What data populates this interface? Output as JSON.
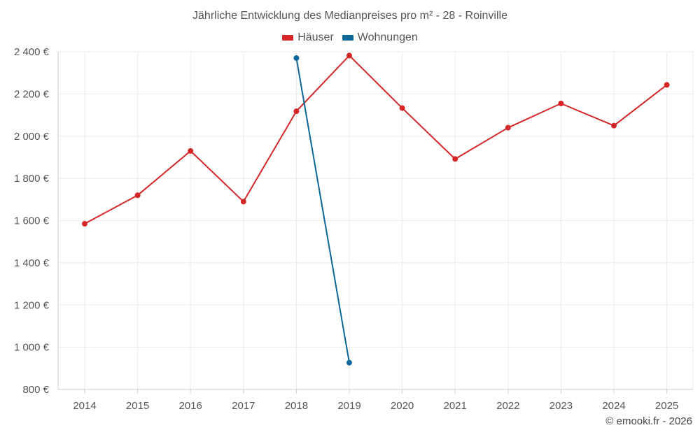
{
  "chart_data": {
    "type": "line",
    "title": "Jährliche Entwicklung des Medianpreises pro m² - 28 - Roinville",
    "categories": [
      "2014",
      "2015",
      "2016",
      "2017",
      "2018",
      "2019",
      "2020",
      "2021",
      "2022",
      "2023",
      "2024",
      "2025"
    ],
    "series": [
      {
        "name": "Häuser",
        "color": "#d62728",
        "values": [
          1585,
          1720,
          1930,
          1690,
          2118,
          2382,
          2133,
          1892,
          2040,
          2155,
          2050,
          2243
        ]
      },
      {
        "name": "Wohnungen",
        "color": "#0f6699",
        "values": [
          null,
          null,
          null,
          null,
          2370,
          927,
          null,
          null,
          null,
          null,
          null,
          null
        ]
      }
    ],
    "y_ticks": [
      "800 €",
      "1 000 €",
      "1 200 €",
      "1 400 €",
      "1 600 €",
      "1 800 €",
      "2 000 €",
      "2 200 €",
      "2 400 €"
    ],
    "ylim": [
      800,
      2400
    ],
    "ytick_step": 200,
    "grid": true,
    "legend_position": "top-center"
  },
  "credit": "© emooki.fr - 2026"
}
